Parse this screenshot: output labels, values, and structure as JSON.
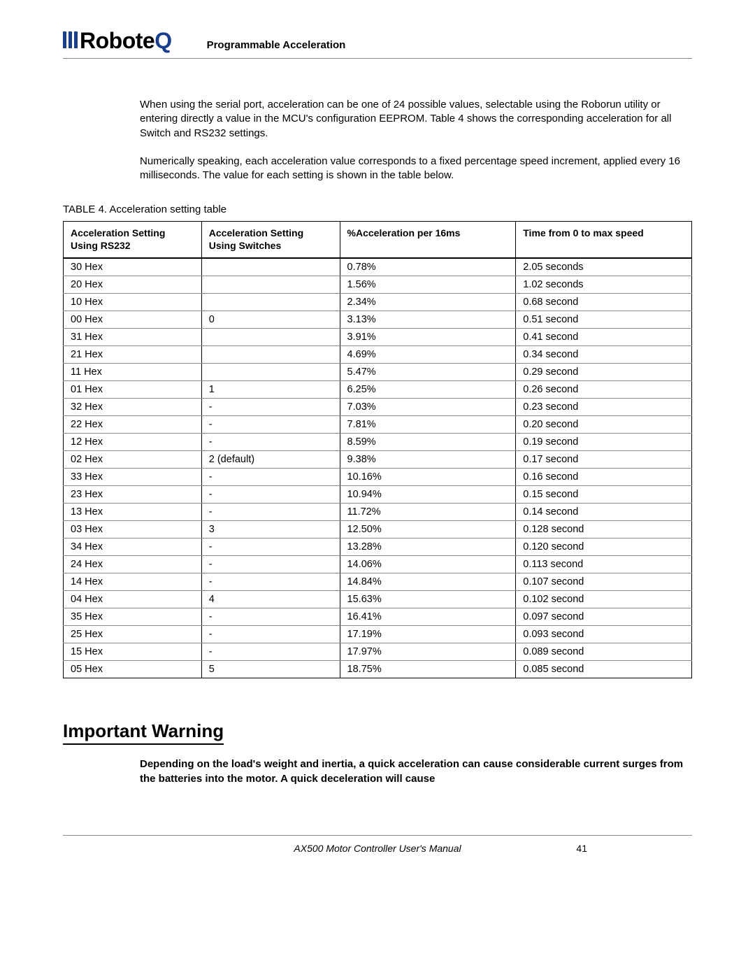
{
  "header": {
    "logo_text_1": "Robote",
    "logo_text_2": "Q",
    "section": "Programmable Acceleration"
  },
  "paragraphs": {
    "p1": "When using the serial port, acceleration can be one of 24 possible values, selectable using the Roborun utility or entering directly a value in the MCU's configuration EEPROM. Table 4 shows the corresponding acceleration for all Switch and RS232 settings.",
    "p2": "Numerically speaking, each acceleration value corresponds to a fixed percentage speed increment, applied every 16 milliseconds. The value for each setting is shown in the table below."
  },
  "table": {
    "caption": "TABLE 4. Acceleration setting table",
    "columns": [
      "Acceleration Setting Using RS232",
      "Acceleration Setting Using Switches",
      "%Acceleration per 16ms",
      "Time from 0 to max speed"
    ],
    "rows": [
      [
        "30 Hex",
        "",
        "0.78%",
        "2.05 seconds"
      ],
      [
        "20 Hex",
        "",
        "1.56%",
        "1.02 seconds"
      ],
      [
        "10 Hex",
        "",
        "2.34%",
        "0.68 second"
      ],
      [
        "00 Hex",
        "0",
        "3.13%",
        "0.51 second"
      ],
      [
        "31 Hex",
        "",
        "3.91%",
        "0.41 second"
      ],
      [
        "21 Hex",
        "",
        "4.69%",
        "0.34 second"
      ],
      [
        "11 Hex",
        "",
        "5.47%",
        "0.29 second"
      ],
      [
        "01 Hex",
        "1",
        "6.25%",
        "0.26 second"
      ],
      [
        "32 Hex",
        "-",
        "7.03%",
        "0.23 second"
      ],
      [
        "22 Hex",
        "-",
        "7.81%",
        "0.20 second"
      ],
      [
        "12 Hex",
        "-",
        "8.59%",
        "0.19 second"
      ],
      [
        "02 Hex",
        "2 (default)",
        "9.38%",
        "0.17 second"
      ],
      [
        "33 Hex",
        "-",
        "10.16%",
        "0.16 second"
      ],
      [
        "23 Hex",
        "-",
        "10.94%",
        "0.15 second"
      ],
      [
        "13 Hex",
        "-",
        "11.72%",
        "0.14 second"
      ],
      [
        "03 Hex",
        "3",
        "12.50%",
        "0.128 second"
      ],
      [
        "34 Hex",
        "-",
        "13.28%",
        "0.120 second"
      ],
      [
        "24 Hex",
        "-",
        "14.06%",
        "0.113 second"
      ],
      [
        "14 Hex",
        "-",
        "14.84%",
        "0.107 second"
      ],
      [
        "04 Hex",
        "4",
        "15.63%",
        "0.102 second"
      ],
      [
        "35 Hex",
        "-",
        "16.41%",
        "0.097 second"
      ],
      [
        "25 Hex",
        "-",
        "17.19%",
        "0.093 second"
      ],
      [
        "15 Hex",
        "-",
        "17.97%",
        "0.089 second"
      ],
      [
        "05 Hex",
        "5",
        "18.75%",
        "0.085 second"
      ]
    ]
  },
  "warning": {
    "heading": "Important Warning",
    "body": "Depending on the load's weight and inertia, a quick acceleration can cause considerable current surges from the batteries into the motor. A quick deceleration will cause"
  },
  "footer": {
    "center": "AX500 Motor Controller User's Manual",
    "page": "41"
  },
  "style": {
    "logo_color": "#1a3e8c",
    "text_color": "#000000",
    "rule_color": "#888888",
    "table_border": "#000000"
  }
}
